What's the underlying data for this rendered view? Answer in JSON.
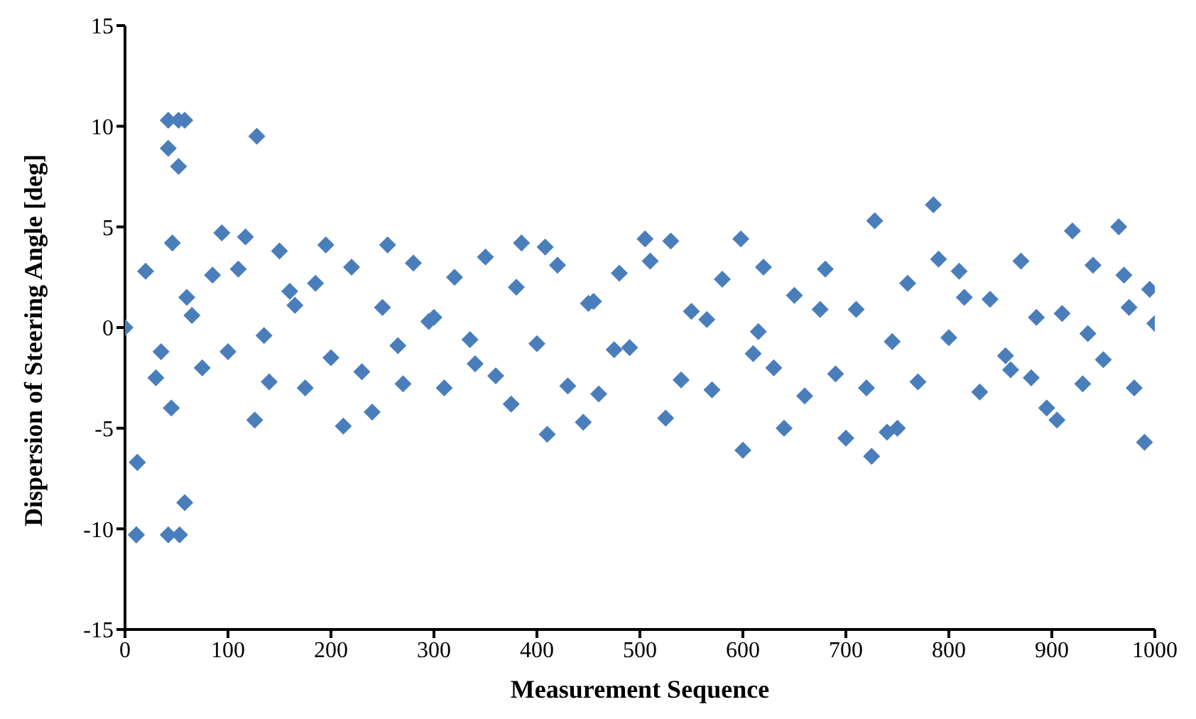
{
  "chart_data": {
    "type": "scatter",
    "xlabel": "Measurement Sequence",
    "ylabel": "Dispersion of Steering Angle [deg]",
    "marker": "diamond",
    "grid": false,
    "legend": false,
    "xlim": [
      0,
      1000
    ],
    "xticks": [
      0,
      100,
      200,
      300,
      400,
      500,
      600,
      700,
      800,
      900,
      1000
    ],
    "ylim": [
      -15,
      15
    ],
    "yticks": [
      -15,
      -10,
      -5,
      0,
      5,
      10,
      15
    ],
    "series": [
      {
        "color": "#4a7ebb",
        "x": [
          0,
          11,
          12,
          42,
          52,
          58,
          42,
          52,
          128,
          46,
          94,
          117,
          12,
          58,
          11,
          42,
          53,
          45,
          126,
          212,
          255,
          600,
          598,
          725,
          728,
          785,
          920,
          965,
          990,
          410,
          445,
          505,
          530,
          525,
          375,
          895,
          905,
          700,
          750,
          740,
          640,
          240,
          150,
          195,
          385,
          408,
          20,
          30,
          60,
          75,
          85,
          100,
          110,
          140,
          160,
          175,
          185,
          200,
          220,
          230,
          250,
          270,
          280,
          300,
          310,
          320,
          340,
          350,
          360,
          380,
          400,
          420,
          430,
          450,
          460,
          480,
          490,
          510,
          540,
          550,
          570,
          580,
          610,
          620,
          630,
          650,
          660,
          680,
          690,
          710,
          720,
          760,
          770,
          790,
          800,
          810,
          830,
          840,
          860,
          870,
          880,
          910,
          930,
          940,
          950,
          970,
          980,
          995,
          1000,
          35,
          65,
          135,
          165,
          265,
          295,
          335,
          455,
          475,
          565,
          615,
          675,
          745,
          815,
          855,
          885,
          935,
          975
        ],
        "values": [
          0,
          -10.3,
          -6.7,
          10.3,
          10.3,
          10.3,
          8.9,
          8.0,
          9.5,
          4.2,
          4.7,
          4.5,
          -6.7,
          -8.7,
          -10.3,
          -10.3,
          -10.3,
          -4.0,
          -4.6,
          -4.9,
          4.1,
          -6.1,
          4.4,
          -6.4,
          5.3,
          6.1,
          4.8,
          5.0,
          -5.7,
          -5.3,
          -4.7,
          4.4,
          4.3,
          -4.5,
          -3.8,
          -4.0,
          -4.6,
          -5.5,
          -5.0,
          -5.2,
          -5.0,
          -4.2,
          3.8,
          4.1,
          4.2,
          4.0,
          2.8,
          -2.5,
          1.5,
          -2.0,
          2.6,
          -1.2,
          2.9,
          -2.7,
          1.8,
          -3.0,
          2.2,
          -1.5,
          3.0,
          -2.2,
          1.0,
          -2.8,
          3.2,
          0.5,
          -3.0,
          2.5,
          -1.8,
          3.5,
          -2.4,
          2.0,
          -0.8,
          3.1,
          -2.9,
          1.2,
          -3.3,
          2.7,
          -1.0,
          3.3,
          -2.6,
          0.8,
          -3.1,
          2.4,
          -1.3,
          3.0,
          -2.0,
          1.6,
          -3.4,
          2.9,
          -2.3,
          0.9,
          -3.0,
          2.2,
          -2.7,
          3.4,
          -0.5,
          2.8,
          -3.2,
          1.4,
          -2.1,
          3.3,
          -2.5,
          0.7,
          -2.8,
          3.1,
          -1.6,
          2.6,
          -3.0,
          1.9,
          0.2,
          -1.2,
          0.6,
          -0.4,
          1.1,
          -0.9,
          0.3,
          -0.6,
          1.3,
          -1.1,
          0.4,
          -0.2,
          0.9,
          -0.7,
          1.5,
          -1.4,
          0.5,
          -0.3,
          1.0
        ]
      }
    ]
  }
}
